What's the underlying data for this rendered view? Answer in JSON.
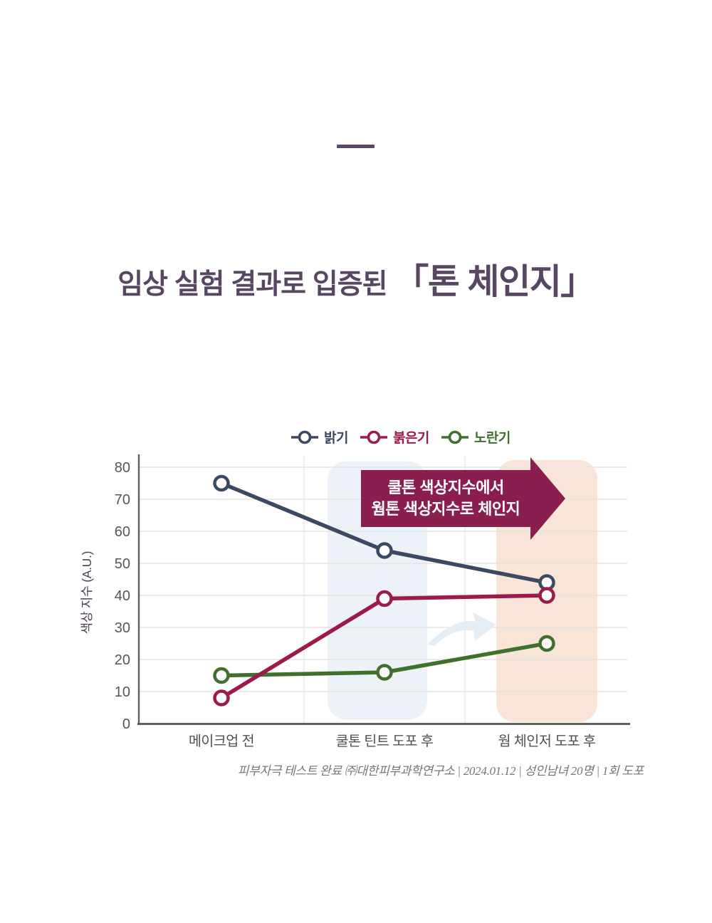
{
  "page": {
    "background": "#ffffff",
    "accent_color": "#584763"
  },
  "title": {
    "main": "임상 실험 결과로 입증된 ",
    "bracket_open": "「",
    "emphasis": "톤 체인지",
    "bracket_close": "」",
    "color": "#584763"
  },
  "chart_data": {
    "type": "line",
    "ylabel": "색상 지수 (A.U.)",
    "ylim": [
      0,
      80
    ],
    "yticks": [
      0,
      10,
      20,
      30,
      40,
      50,
      60,
      70,
      80
    ],
    "grid": true,
    "legend_position": "top",
    "categories": [
      "메이크업 전",
      "쿨톤 틴트 도포 후",
      "웜 체인저 도포 후"
    ],
    "series": [
      {
        "name": "밝기",
        "color": "#3c4963",
        "values": [
          75,
          54,
          44
        ]
      },
      {
        "name": "붉은기",
        "color": "#9c1b4d",
        "values": [
          8,
          39,
          40
        ]
      },
      {
        "name": "노란기",
        "color": "#41702e",
        "values": [
          15,
          16,
          25
        ]
      }
    ],
    "annotation": {
      "shape": "right-arrow",
      "lines": [
        "쿨톤 색상지수에서",
        "웜톤 색상지수로 체인지"
      ],
      "bg_color": "#8a1e4e",
      "text_color": "#ffffff"
    },
    "highlights": [
      {
        "category_index": 1,
        "color": "#ecf2f7"
      },
      {
        "category_index": 2,
        "color": "#f9e4d8"
      }
    ],
    "axis_color": "#5f5f5f",
    "grid_color": "#e4e4e4",
    "tick_color": "#56575a",
    "xlabel_color": "#515151",
    "ylabel_color": "#4b3e54"
  },
  "footnote": {
    "text": "피부자극 테스트 완료 ㈜대한피부과학연구소 | 2024.01.12 | 성인남녀 20명 | 1회 도포"
  }
}
